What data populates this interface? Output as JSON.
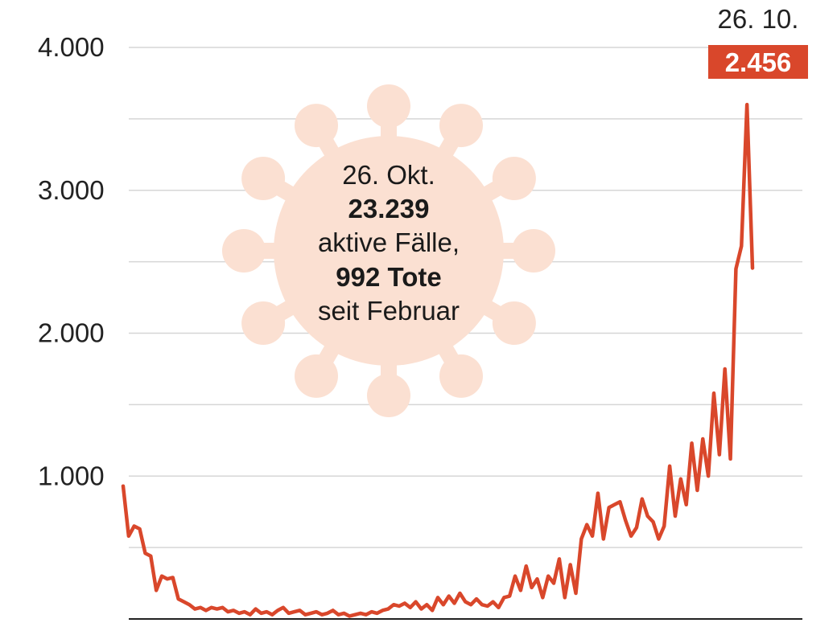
{
  "chart_data": {
    "type": "line",
    "title": "",
    "xlabel": "",
    "ylabel": "",
    "ylim": [
      0,
      4000
    ],
    "grid": true,
    "yticks": [
      {
        "value": 1000,
        "label": "1.000"
      },
      {
        "value": 2000,
        "label": "2.000"
      },
      {
        "value": 3000,
        "label": "3.000"
      },
      {
        "value": 4000,
        "label": "4.000"
      }
    ],
    "series": [
      {
        "color": "#d9472b",
        "values": [
          930,
          580,
          650,
          630,
          460,
          440,
          200,
          300,
          280,
          290,
          140,
          120,
          100,
          70,
          80,
          60,
          80,
          70,
          80,
          50,
          60,
          40,
          50,
          30,
          70,
          40,
          50,
          30,
          60,
          80,
          40,
          50,
          60,
          30,
          40,
          50,
          30,
          40,
          60,
          30,
          40,
          20,
          30,
          40,
          30,
          50,
          40,
          60,
          70,
          100,
          90,
          110,
          80,
          120,
          70,
          100,
          60,
          150,
          100,
          160,
          110,
          180,
          120,
          100,
          140,
          100,
          90,
          120,
          80,
          150,
          160,
          300,
          200,
          370,
          220,
          280,
          150,
          300,
          250,
          420,
          150,
          380,
          180,
          560,
          660,
          580,
          880,
          560,
          780,
          800,
          820,
          690,
          580,
          640,
          840,
          720,
          680,
          560,
          650,
          1070,
          720,
          980,
          800,
          1230,
          900,
          1260,
          1000,
          1580,
          1150,
          1750,
          1120,
          2450,
          2610,
          3600,
          2456
        ]
      }
    ],
    "annotations": {
      "info_date": "26. Okt.",
      "active_cases": "23.239",
      "active_label": "aktive Fälle,",
      "deaths": "992 Tote",
      "since": "seit Februar",
      "last_date": "26. 10.",
      "last_value": "2.456",
      "badge_color": "#d9472b",
      "virus_color": "#fbe0d2"
    }
  }
}
